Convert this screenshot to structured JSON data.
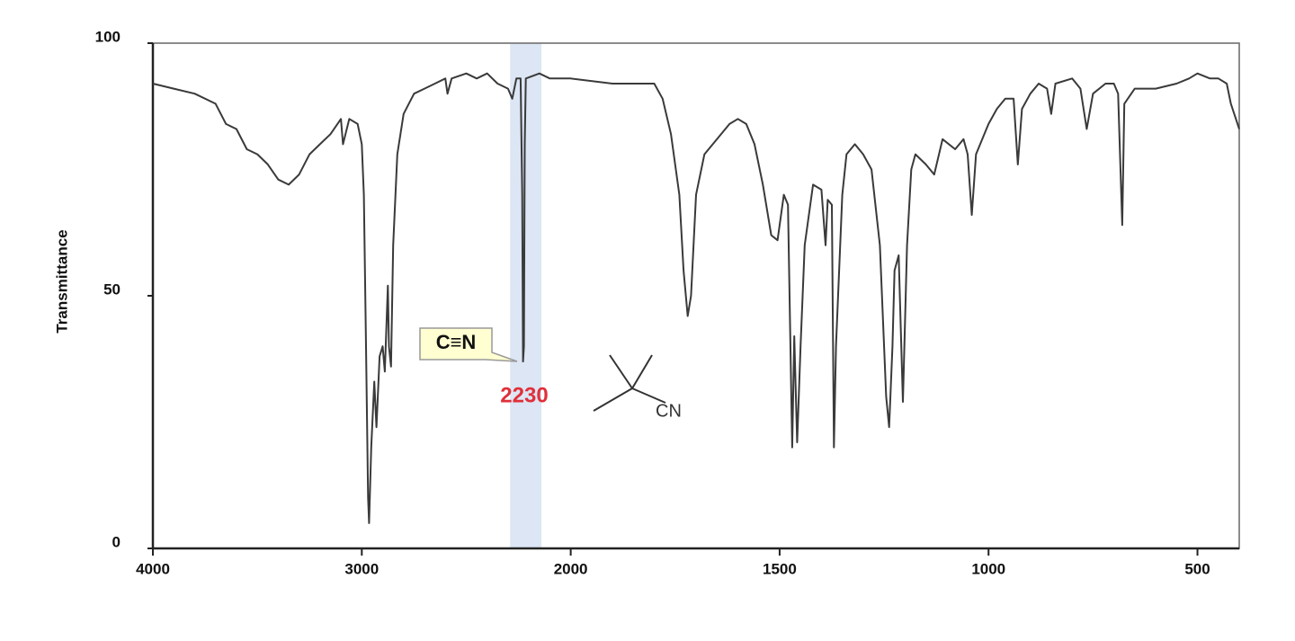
{
  "chart_data": {
    "type": "line",
    "ylabel": "Transmittance",
    "xlim": [
      4000,
      400
    ],
    "xscale_break": 2000,
    "ylim": [
      0,
      100
    ],
    "xticks": [
      4000,
      3000,
      2000,
      1500,
      1000,
      500
    ],
    "yticks": [
      0,
      50,
      100
    ],
    "color": "#3a3a3a",
    "highlight": {
      "range": [
        2290,
        2140
      ],
      "color": "#dce6f4"
    },
    "annotations": [
      {
        "text": "C≡N",
        "color": "#111111",
        "background": "#ffffd2"
      },
      {
        "text": "2230",
        "color": "#e0303a"
      },
      {
        "text": "CN",
        "color": "#333333"
      }
    ],
    "x": [
      4000,
      3900,
      3800,
      3700,
      3650,
      3600,
      3550,
      3500,
      3450,
      3400,
      3350,
      3300,
      3250,
      3200,
      3150,
      3100,
      3090,
      3060,
      3020,
      3000,
      2990,
      2980,
      2970,
      2965,
      2955,
      2940,
      2930,
      2915,
      2900,
      2890,
      2875,
      2870,
      2860,
      2850,
      2830,
      2800,
      2750,
      2700,
      2650,
      2600,
      2590,
      2570,
      2500,
      2450,
      2400,
      2350,
      2300,
      2280,
      2260,
      2240,
      2232,
      2228,
      2224,
      2220,
      2215,
      2150,
      2100,
      2000,
      1900,
      1800,
      1780,
      1760,
      1740,
      1730,
      1720,
      1712,
      1700,
      1680,
      1660,
      1620,
      1600,
      1580,
      1560,
      1540,
      1520,
      1505,
      1490,
      1480,
      1470,
      1465,
      1458,
      1450,
      1440,
      1420,
      1400,
      1390,
      1385,
      1375,
      1370,
      1365,
      1350,
      1340,
      1320,
      1300,
      1280,
      1260,
      1245,
      1238,
      1230,
      1225,
      1215,
      1205,
      1195,
      1185,
      1175,
      1150,
      1130,
      1110,
      1080,
      1060,
      1050,
      1040,
      1030,
      1000,
      980,
      960,
      940,
      930,
      920,
      900,
      880,
      860,
      850,
      840,
      800,
      780,
      765,
      750,
      720,
      700,
      690,
      680,
      675,
      650,
      600,
      550,
      520,
      500,
      470,
      450,
      430,
      420,
      400
    ],
    "values": [
      92,
      91,
      90,
      88,
      84,
      83,
      79,
      78,
      76,
      73,
      72,
      74,
      78,
      80,
      82,
      85,
      80,
      85,
      84,
      80,
      70,
      40,
      10,
      5,
      20,
      33,
      24,
      38,
      40,
      35,
      52,
      40,
      36,
      60,
      78,
      86,
      90,
      91,
      92,
      93,
      90,
      93,
      94,
      93,
      94,
      92,
      91,
      89,
      93,
      93,
      70,
      37,
      40,
      80,
      93,
      94,
      93,
      93,
      92,
      92,
      89,
      82,
      70,
      55,
      46,
      50,
      70,
      78,
      80,
      84,
      85,
      84,
      80,
      72,
      62,
      61,
      70,
      68,
      20,
      42,
      21,
      40,
      60,
      72,
      71,
      60,
      69,
      68,
      20,
      40,
      70,
      78,
      80,
      78,
      75,
      60,
      30,
      24,
      40,
      55,
      58,
      29,
      60,
      75,
      78,
      76,
      74,
      81,
      79,
      81,
      78,
      66,
      78,
      84,
      87,
      89,
      89,
      76,
      87,
      90,
      92,
      91,
      86,
      92,
      93,
      91,
      83,
      90,
      92,
      92,
      90,
      64,
      88,
      91,
      91,
      92,
      93,
      94,
      93,
      93,
      92,
      88,
      83
    ]
  }
}
